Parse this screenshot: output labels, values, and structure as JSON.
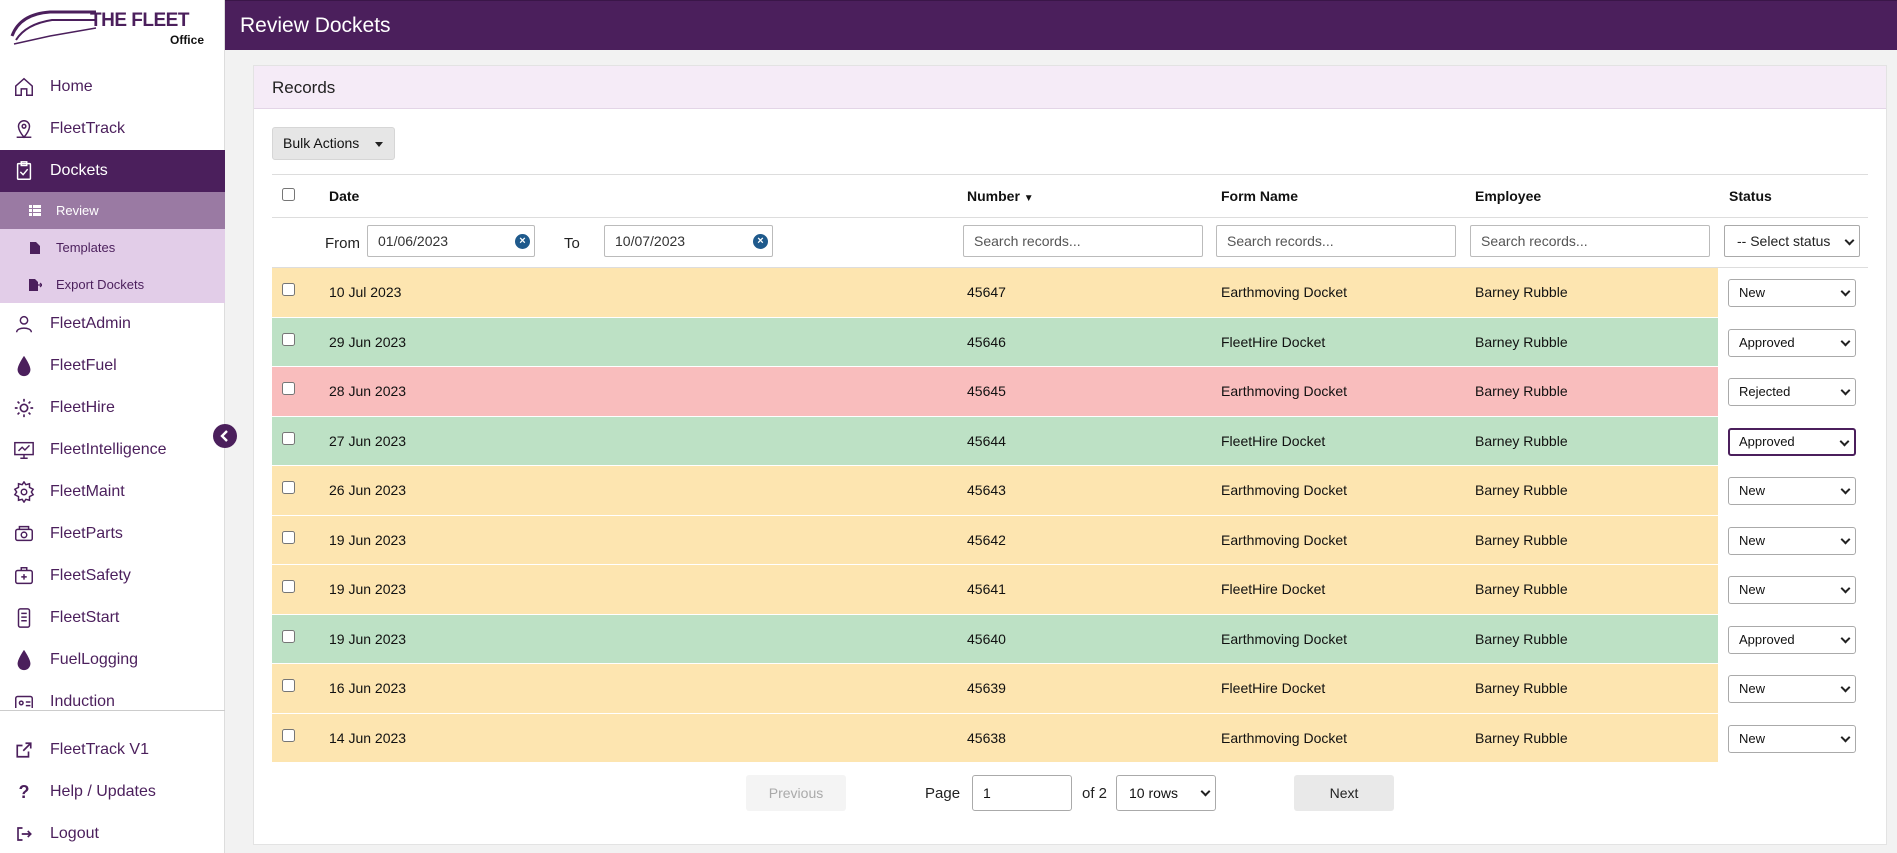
{
  "logo": {
    "title": "THE FLEET",
    "subtitle": "Office"
  },
  "header": {
    "title": "Review Dockets"
  },
  "sidebar": {
    "items": [
      {
        "label": "Home",
        "icon": "home-icon"
      },
      {
        "label": "FleetTrack",
        "icon": "map-pin-icon"
      },
      {
        "label": "Dockets",
        "icon": "clipboard-icon",
        "active": true
      },
      {
        "label": "FleetAdmin",
        "icon": "user-admin-icon"
      },
      {
        "label": "FleetFuel",
        "icon": "droplet-icon"
      },
      {
        "label": "FleetHire",
        "icon": "cog-refresh-icon"
      },
      {
        "label": "FleetIntelligence",
        "icon": "monitor-chart-icon"
      },
      {
        "label": "FleetMaint",
        "icon": "gear-icon"
      },
      {
        "label": "FleetParts",
        "icon": "parts-icon"
      },
      {
        "label": "FleetSafety",
        "icon": "safety-icon"
      },
      {
        "label": "FleetStart",
        "icon": "phone-checklist-icon"
      },
      {
        "label": "FuelLogging",
        "icon": "droplet-icon"
      },
      {
        "label": "Induction",
        "icon": "induction-icon"
      }
    ],
    "sub_items": [
      {
        "label": "Review",
        "icon": "list-icon",
        "active": true
      },
      {
        "label": "Templates",
        "icon": "file-icon"
      },
      {
        "label": "Export Dockets",
        "icon": "file-export-icon"
      }
    ],
    "bottom": [
      {
        "label": "FleetTrack V1",
        "icon": "external-link-icon"
      },
      {
        "label": "Help / Updates",
        "icon": "question-icon"
      },
      {
        "label": "Logout",
        "icon": "logout-icon"
      }
    ]
  },
  "card": {
    "title": "Records",
    "bulk_label": "Bulk Actions"
  },
  "table": {
    "headers": {
      "date": "Date",
      "number": "Number",
      "form": "Form Name",
      "employee": "Employee",
      "status": "Status"
    },
    "filters": {
      "from_label": "From",
      "from_value": "01/06/2023",
      "to_label": "To",
      "to_value": "10/07/2023",
      "search_placeholder": "Search records...",
      "status_placeholder": "-- Select status"
    },
    "rows": [
      {
        "date": "10 Jul 2023",
        "number": "45647",
        "form": "Earthmoving Docket",
        "employee": "Barney Rubble",
        "status": "New"
      },
      {
        "date": "29 Jun 2023",
        "number": "45646",
        "form": "FleetHire Docket",
        "employee": "Barney Rubble",
        "status": "Approved"
      },
      {
        "date": "28 Jun 2023",
        "number": "45645",
        "form": "Earthmoving Docket",
        "employee": "Barney Rubble",
        "status": "Rejected"
      },
      {
        "date": "27 Jun 2023",
        "number": "45644",
        "form": "FleetHire Docket",
        "employee": "Barney Rubble",
        "status": "Approved"
      },
      {
        "date": "26 Jun 2023",
        "number": "45643",
        "form": "Earthmoving Docket",
        "employee": "Barney Rubble",
        "status": "New"
      },
      {
        "date": "19 Jun 2023",
        "number": "45642",
        "form": "Earthmoving Docket",
        "employee": "Barney Rubble",
        "status": "New"
      },
      {
        "date": "19 Jun 2023",
        "number": "45641",
        "form": "FleetHire Docket",
        "employee": "Barney Rubble",
        "status": "New"
      },
      {
        "date": "19 Jun 2023",
        "number": "45640",
        "form": "Earthmoving Docket",
        "employee": "Barney Rubble",
        "status": "Approved"
      },
      {
        "date": "16 Jun 2023",
        "number": "45639",
        "form": "FleetHire Docket",
        "employee": "Barney Rubble",
        "status": "New"
      },
      {
        "date": "14 Jun 2023",
        "number": "45638",
        "form": "Earthmoving Docket",
        "employee": "Barney Rubble",
        "status": "New"
      }
    ]
  },
  "pagination": {
    "previous": "Previous",
    "next": "Next",
    "page_label": "Page",
    "page_value": "1",
    "of_label": "of 2",
    "rows_option": "10 rows"
  },
  "colors": {
    "brand": "#4b1f5c",
    "row_new": "#fde5b0",
    "row_approved": "#bde1c5",
    "row_rejected": "#f9bdbd"
  }
}
